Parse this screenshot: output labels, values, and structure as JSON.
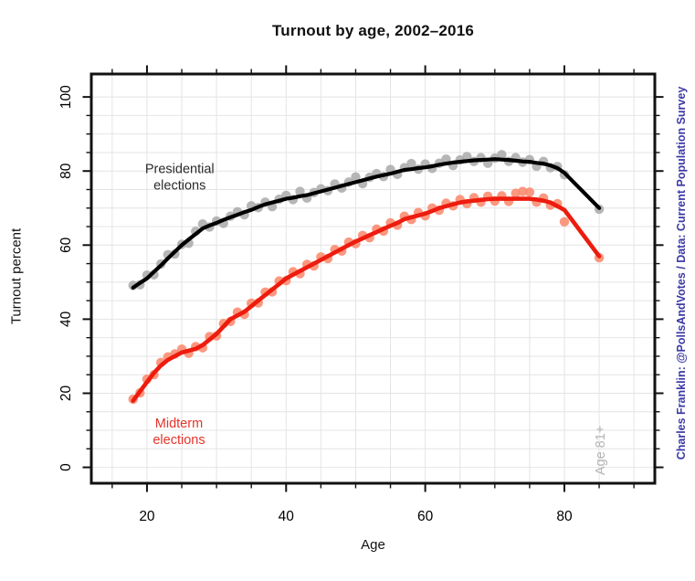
{
  "title": "Turnout by age, 2002–2016",
  "caption_right": {
    "text": "Charles Franklin: @PollsAndVotes / Data: Current Population Survey",
    "color": "#3D39A6"
  },
  "chart_data": {
    "type": "scatter",
    "title": "Turnout by age, 2002–2016",
    "xlabel": "Age",
    "ylabel": "Turnout percent",
    "x_ticks": [
      20,
      40,
      60,
      80
    ],
    "y_ticks": [
      0,
      20,
      40,
      60,
      80,
      100
    ],
    "minor_tick_step": 5,
    "xlim": [
      12,
      93
    ],
    "ylim": [
      -4.3,
      106.2
    ],
    "grid": true,
    "grid_step": 5,
    "grid_color": "#e4e4e4",
    "legend_position": "none",
    "ages": [
      18,
      19,
      20,
      21,
      22,
      23,
      24,
      25,
      26,
      27,
      28,
      29,
      30,
      31,
      32,
      33,
      34,
      35,
      36,
      37,
      38,
      39,
      40,
      41,
      42,
      43,
      44,
      45,
      46,
      47,
      48,
      49,
      50,
      51,
      52,
      53,
      54,
      55,
      56,
      57,
      58,
      59,
      60,
      61,
      62,
      63,
      64,
      65,
      66,
      67,
      68,
      69,
      70,
      71,
      72,
      73,
      74,
      75,
      76,
      77,
      78,
      79,
      80,
      85
    ],
    "series": [
      {
        "name": "Presidential elections",
        "curve_color": "#000000",
        "dot_color": "#acacac",
        "curve": [
          48.5,
          49.8,
          51.0,
          52.8,
          54.5,
          56.4,
          58.2,
          60.0,
          61.5,
          63.0,
          64.5,
          65.3,
          66.0,
          66.8,
          67.5,
          68.2,
          68.9,
          69.5,
          70.3,
          71.0,
          71.5,
          72.0,
          72.5,
          72.8,
          73.2,
          73.5,
          74.0,
          74.5,
          75.0,
          75.5,
          76.0,
          76.5,
          77.0,
          77.5,
          78.0,
          78.5,
          78.9,
          79.3,
          79.8,
          80.3,
          80.5,
          80.8,
          81.0,
          81.3,
          81.7,
          82.0,
          82.3,
          82.5,
          82.7,
          82.9,
          83.0,
          83.1,
          83.2,
          83.1,
          83.0,
          82.8,
          82.6,
          82.5,
          82.2,
          82.0,
          81.5,
          80.8,
          79.5,
          70.0
        ],
        "dots": [
          49.1,
          49.3,
          51.9,
          52.0,
          54.9,
          57.4,
          57.6,
          60.2,
          60.5,
          63.7,
          65.7,
          64.9,
          66.5,
          65.9,
          67.8,
          69.0,
          68.2,
          70.6,
          70.1,
          71.6,
          70.4,
          72.4,
          73.4,
          72.3,
          74.5,
          72.7,
          74.2,
          75.2,
          74.7,
          76.5,
          75.4,
          77.0,
          78.4,
          76.6,
          78.3,
          79.3,
          78.5,
          80.4,
          79.1,
          80.9,
          82.0,
          80.5,
          81.9,
          80.7,
          82.1,
          83.2,
          81.5,
          83.0,
          83.9,
          82.6,
          83.6,
          82.1,
          83.5,
          84.4,
          82.6,
          83.6,
          82.4,
          83.1,
          81.3,
          82.6,
          80.9,
          81.2,
          79.0,
          69.7
        ]
      },
      {
        "name": "Midterm elections",
        "curve_color": "#ed1c0e",
        "dot_color": "#fa8a6e",
        "curve": [
          18.0,
          20.5,
          23.0,
          25.5,
          27.5,
          29.0,
          30.0,
          31.0,
          31.5,
          32.0,
          33.0,
          34.5,
          36.0,
          38.0,
          40.0,
          41.0,
          42.0,
          43.5,
          45.0,
          46.5,
          48.0,
          49.5,
          51.0,
          52.0,
          53.0,
          54.0,
          55.0,
          56.0,
          57.0,
          58.0,
          59.0,
          60.0,
          61.0,
          61.8,
          62.7,
          63.5,
          64.4,
          65.2,
          66.0,
          67.0,
          67.5,
          68.0,
          68.5,
          69.2,
          70.0,
          70.5,
          71.0,
          71.5,
          71.8,
          72.0,
          72.2,
          72.4,
          72.5,
          72.5,
          72.5,
          72.5,
          72.5,
          72.5,
          72.3,
          72.0,
          71.5,
          70.5,
          69.5,
          57.0
        ],
        "dots": [
          18.4,
          20.1,
          23.8,
          25.0,
          28.3,
          29.8,
          30.6,
          31.9,
          30.8,
          32.6,
          32.3,
          35.3,
          35.5,
          38.8,
          39.4,
          41.9,
          41.3,
          44.3,
          44.4,
          47.3,
          47.4,
          50.3,
          50.4,
          52.8,
          52.3,
          54.8,
          54.4,
          56.8,
          56.4,
          58.8,
          58.4,
          60.8,
          60.4,
          62.6,
          62.0,
          64.3,
          63.8,
          66.0,
          65.4,
          67.8,
          66.9,
          68.8,
          67.9,
          70.0,
          69.4,
          71.3,
          70.6,
          72.3,
          71.2,
          72.8,
          71.6,
          73.2,
          71.9,
          73.3,
          71.8,
          74.0,
          74.5,
          74.3,
          71.6,
          72.7,
          70.8,
          71.2,
          66.3,
          56.6
        ]
      }
    ],
    "annotations": [
      {
        "name": "presidential-label",
        "lines": [
          "Presidential",
          "elections"
        ],
        "x_age": 24.7,
        "y_val": 78.5,
        "color": "#2b2b2b",
        "rotated": false
      },
      {
        "name": "midterm-label",
        "lines": [
          "Midterm",
          "elections"
        ],
        "x_age": 24.6,
        "y_val": 9.8,
        "color": "#e63229",
        "rotated": false
      },
      {
        "name": "age-81-label",
        "lines": [
          "Age 81+"
        ],
        "x_age": 85.1,
        "y_val": 4.6,
        "color": "#b3b3b3",
        "rotated": true
      }
    ],
    "axis_color": "#111111",
    "tick_label_color": "#000000"
  }
}
